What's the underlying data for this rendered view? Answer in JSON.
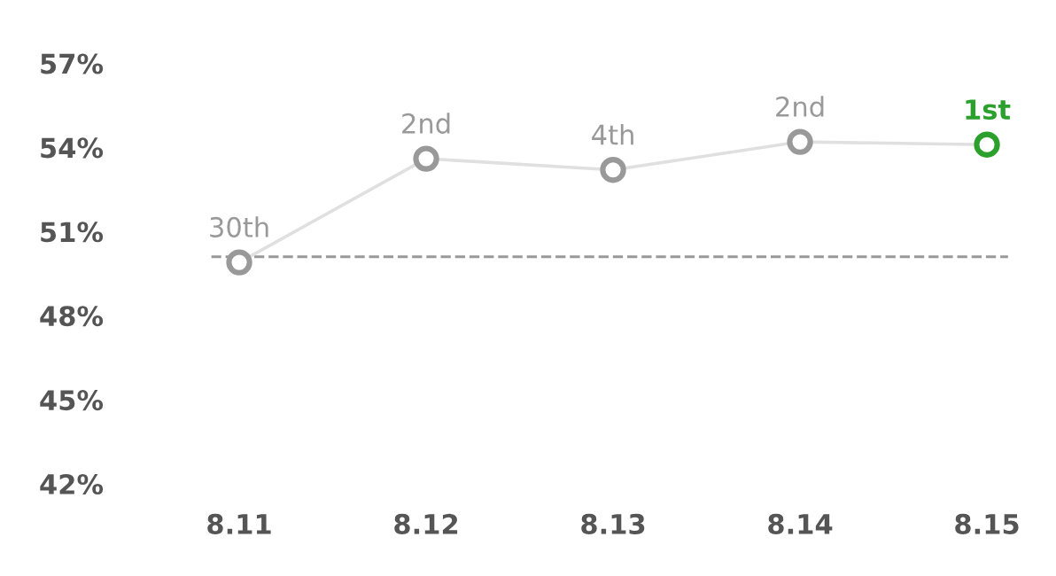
{
  "chart_data": {
    "type": "line",
    "categories": [
      "8.11",
      "8.12",
      "8.13",
      "8.14",
      "8.15"
    ],
    "series": [
      {
        "color": "#e0e0e0",
        "colors": [
          "#999999",
          "#999999",
          "#999999",
          "#999999",
          "#2ca02c"
        ],
        "values": [
          49.9,
          53.6,
          53.2,
          54.2,
          54.1
        ]
      }
    ],
    "annotations": [
      {
        "text": "30th",
        "x": "8.11",
        "y": 49.9
      },
      {
        "text": "2nd",
        "x": "8.12",
        "y": 53.6
      },
      {
        "text": "4th",
        "x": "8.13",
        "y": 53.2
      },
      {
        "text": "2nd",
        "x": "8.14",
        "y": 54.2
      },
      {
        "text": "1st",
        "x": "8.15",
        "y": 54.1
      }
    ],
    "ylim": [
      42,
      57
    ],
    "yticks": [
      {
        "value": 42,
        "label": "42%"
      },
      {
        "value": 45,
        "label": "45%"
      },
      {
        "value": 48,
        "label": "48%"
      },
      {
        "value": 51,
        "label": "51%"
      },
      {
        "value": 54,
        "label": "54%"
      },
      {
        "value": 57,
        "label": "57%"
      }
    ],
    "ref_lines": [
      {
        "axis": "y",
        "value": 50.1,
        "color": "#999999",
        "line_style": "dashed"
      }
    ],
    "grid": false,
    "legend": false,
    "marker": "circle",
    "line_style": "solid"
  }
}
